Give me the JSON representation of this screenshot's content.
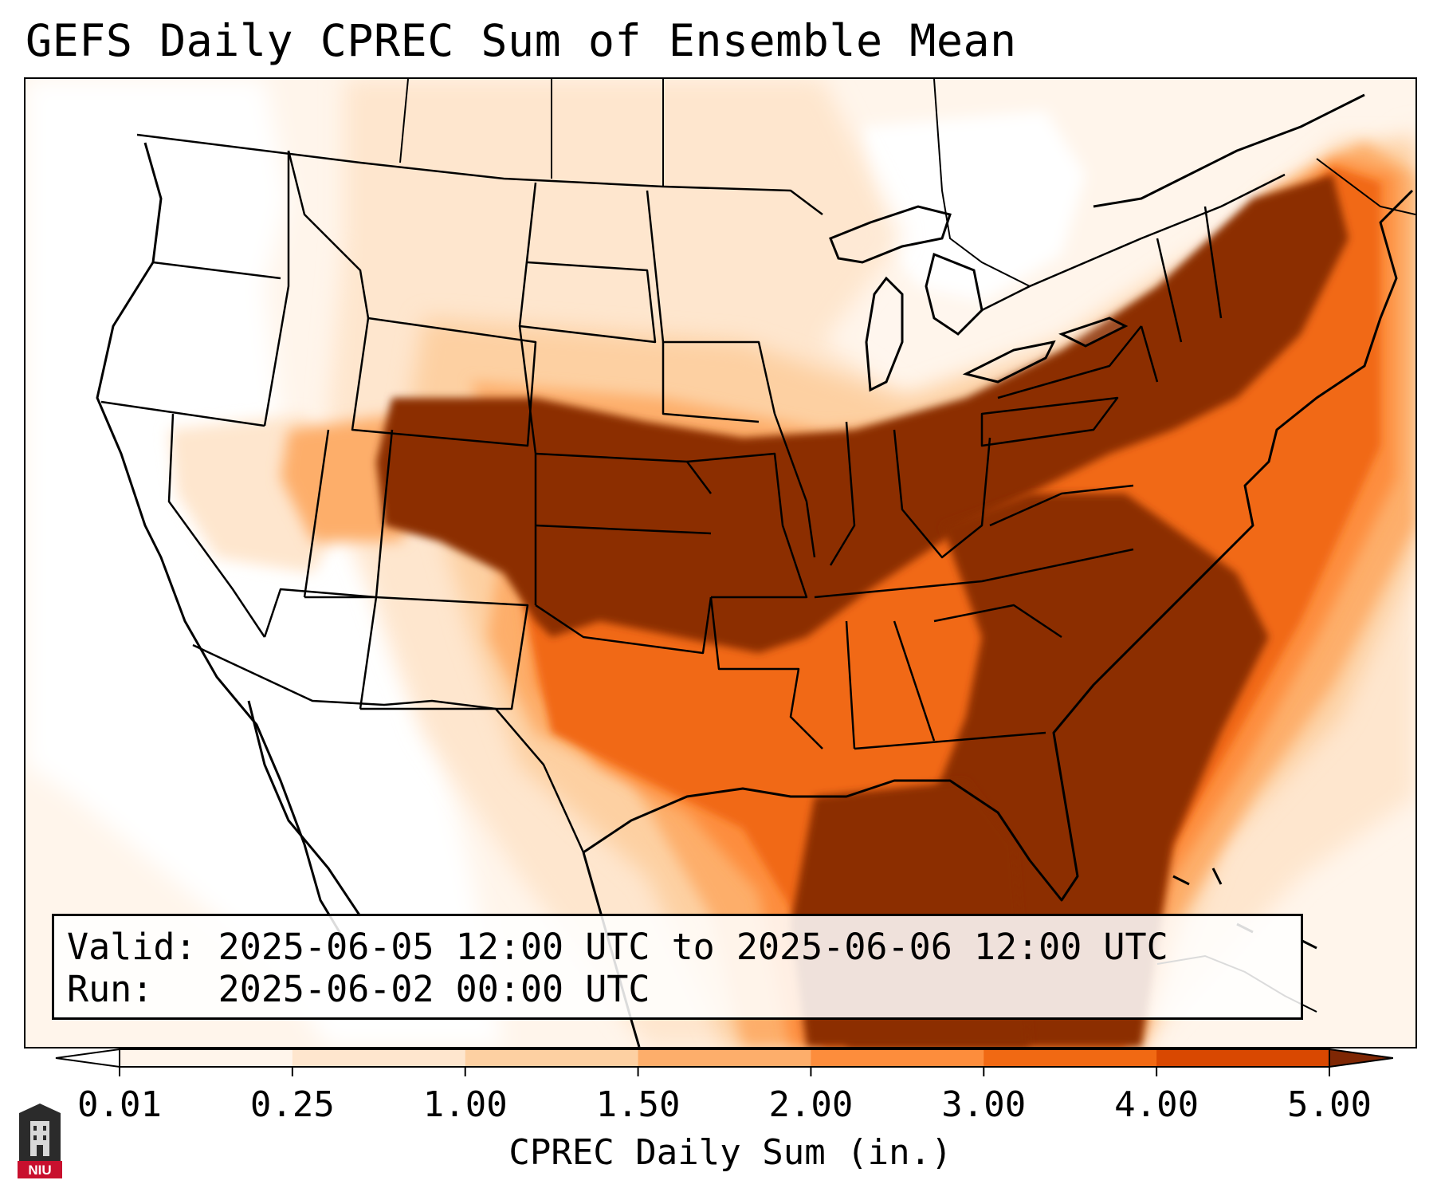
{
  "title": "GEFS Daily CPREC Sum of Ensemble Mean",
  "info": {
    "valid_line": "Valid: 2025-06-05 12:00 UTC to 2025-06-06 12:00 UTC",
    "run_line": "Run:   2025-06-02 00:00 UTC"
  },
  "colorbar": {
    "label": "CPREC Daily Sum (in.)",
    "ticks": [
      "0.01",
      "0.25",
      "1.00",
      "1.50",
      "2.00",
      "3.00",
      "4.00",
      "5.00"
    ],
    "colors": [
      "#fff5eb",
      "#fee6ce",
      "#fdd0a2",
      "#fdae6b",
      "#fd8d3c",
      "#f16913",
      "#d94801",
      "#8c2d04"
    ],
    "under_color": "#ffffff",
    "over_color": "#7f2704"
  },
  "map": {
    "region": "Contiguous United States",
    "heavy_precip_areas": [
      "Central Plains",
      "Ohio Valley",
      "Northeast",
      "Southeast",
      "Florida and Gulf of Mexico"
    ],
    "dry_areas": [
      "West Coast",
      "Great Basin",
      "Desert Southwest"
    ]
  },
  "logo": {
    "text": "NIU"
  }
}
